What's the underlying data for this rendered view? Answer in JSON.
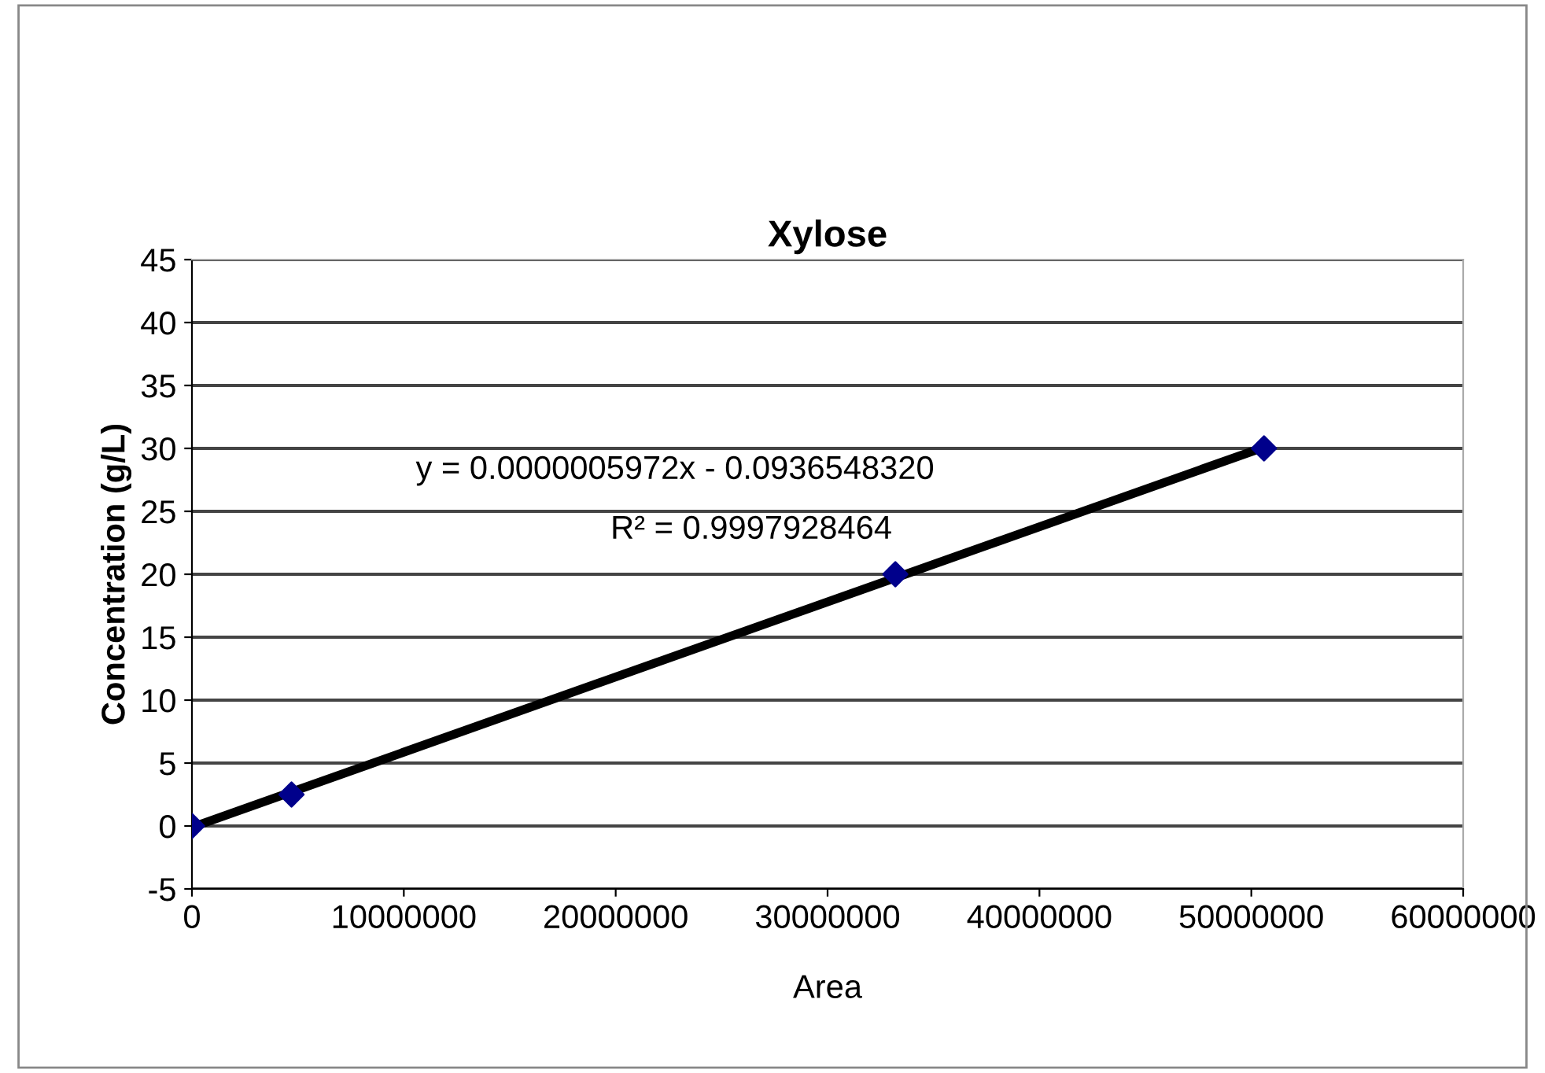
{
  "chart_data": {
    "type": "scatter",
    "title": "Xylose",
    "xlabel": "Area",
    "ylabel": "Concentration (g/L)",
    "x": [
      0,
      4700000,
      33200000,
      50600000
    ],
    "series": [
      {
        "color": "#00008b",
        "marker": "diamond",
        "values": [
          0,
          2.5,
          20,
          30
        ]
      },
      {
        "type": "line",
        "color": "#000000",
        "line_style": "solid",
        "x": [
          0,
          50600000
        ],
        "values": [
          -0.1,
          30.1
        ]
      }
    ],
    "xlim": [
      0,
      60000000
    ],
    "xticks": [
      0,
      10000000,
      20000000,
      30000000,
      40000000,
      50000000,
      60000000
    ],
    "ylim": [
      -5,
      45
    ],
    "yticks": [
      -5,
      0,
      5,
      10,
      15,
      20,
      25,
      30,
      35,
      40,
      45
    ],
    "grid": "y",
    "legend": false,
    "annotations": [
      "y = 0.0000005972x - 0.0936548320",
      "R² = 0.9997928464"
    ]
  }
}
